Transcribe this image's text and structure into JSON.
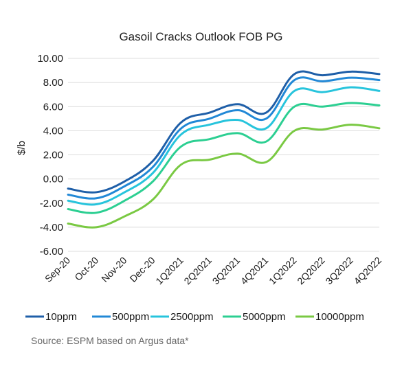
{
  "chart_data": {
    "type": "line",
    "title": "Gasoil Cracks Outlook FOB PG",
    "ylabel": "$/b",
    "xlabel": "",
    "ylim": [
      -6,
      10
    ],
    "yticks": [
      -6,
      -4,
      -2,
      0,
      2,
      4,
      6,
      8,
      10
    ],
    "ytick_labels": [
      "-6.00",
      "-4.00",
      "-2.00",
      "0.00",
      "2.00",
      "4.00",
      "6.00",
      "8.00",
      "10.00"
    ],
    "categories": [
      "Sep-20",
      "Oct-20",
      "Nov-20",
      "Dec-20",
      "1Q2021",
      "2Q2021",
      "3Q2021",
      "4Q2021",
      "1Q2022",
      "2Q2022",
      "3Q2022",
      "4Q2022"
    ],
    "grid": true,
    "legend_position": "bottom",
    "series": [
      {
        "name": "10ppm",
        "color": "#1f5fa8",
        "values": [
          -0.8,
          -1.1,
          -0.2,
          1.5,
          4.7,
          5.5,
          6.2,
          5.5,
          8.7,
          8.6,
          8.9,
          8.7
        ]
      },
      {
        "name": "500ppm",
        "color": "#2188d6",
        "values": [
          -1.3,
          -1.6,
          -0.6,
          1.0,
          4.2,
          5.0,
          5.7,
          5.0,
          8.2,
          8.1,
          8.4,
          8.2
        ]
      },
      {
        "name": "2500ppm",
        "color": "#27c4dc",
        "values": [
          -1.8,
          -2.1,
          -1.1,
          0.5,
          3.7,
          4.5,
          4.9,
          4.2,
          7.3,
          7.2,
          7.6,
          7.3
        ]
      },
      {
        "name": "5000ppm",
        "color": "#2ccf92",
        "values": [
          -2.5,
          -2.8,
          -1.8,
          -0.2,
          2.7,
          3.3,
          3.8,
          3.1,
          6.0,
          6.0,
          6.3,
          6.1
        ]
      },
      {
        "name": "10000ppm",
        "color": "#7ac943",
        "values": [
          -3.7,
          -4.0,
          -3.1,
          -1.7,
          1.2,
          1.6,
          2.1,
          1.4,
          4.0,
          4.1,
          4.5,
          4.2
        ]
      }
    ],
    "source": "Source: ESPM based on Argus data*"
  }
}
